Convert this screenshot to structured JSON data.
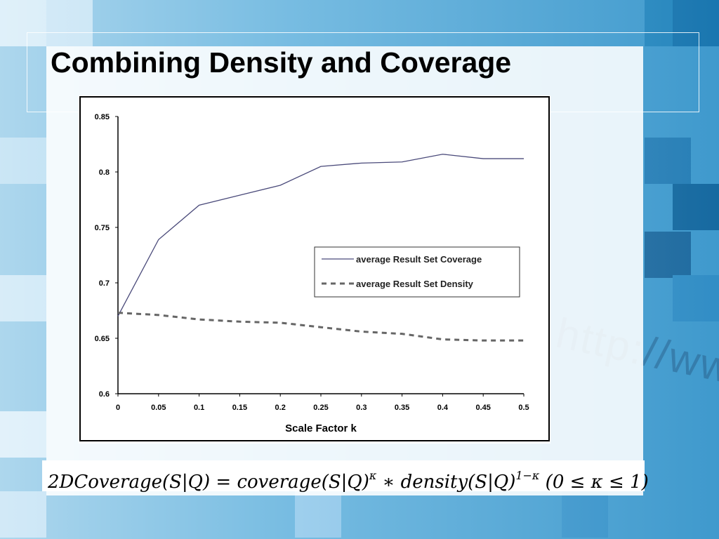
{
  "slide": {
    "title": "Combining Density and Coverage",
    "formula": {
      "lhs": "2DCoverage(S|Q) = coverage(S|Q)",
      "exp1": "κ",
      "mid": " ∗ density(S|Q)",
      "exp2": "1−κ",
      "cond": "  (0 ≤ κ ≤ 1)"
    },
    "decor_text": "http://www"
  },
  "colors": {
    "coverage_line": "#4a4a7a",
    "density_line": "#666666"
  },
  "chart_data": {
    "type": "line",
    "x": [
      0,
      0.05,
      0.1,
      0.15,
      0.2,
      0.25,
      0.3,
      0.35,
      0.4,
      0.45,
      0.5
    ],
    "x_tick_labels": [
      "0",
      "0.05",
      "0.1",
      "0.15",
      "0.2",
      "0.25",
      "0.3",
      "0.35",
      "0.4",
      "0.45",
      "0.5"
    ],
    "y_tick_labels": [
      "0.6",
      "0.65",
      "0.7",
      "0.75",
      "0.8",
      "0.85"
    ],
    "y_ticks": [
      0.6,
      0.65,
      0.7,
      0.75,
      0.8,
      0.85
    ],
    "ylim": [
      0.6,
      0.85
    ],
    "xlim": [
      0,
      0.5
    ],
    "xlabel": "Scale Factor k",
    "ylabel": "",
    "title": "",
    "grid": false,
    "legend_position": "center-right",
    "series": [
      {
        "name": "average Result Set Coverage",
        "style": "solid",
        "values": [
          0.67,
          0.739,
          0.77,
          0.779,
          0.788,
          0.805,
          0.808,
          0.809,
          0.816,
          0.812,
          0.812
        ]
      },
      {
        "name": "average Result Set Density",
        "style": "dashed",
        "values": [
          0.673,
          0.671,
          0.667,
          0.665,
          0.664,
          0.66,
          0.656,
          0.654,
          0.649,
          0.648,
          0.648
        ]
      }
    ]
  }
}
